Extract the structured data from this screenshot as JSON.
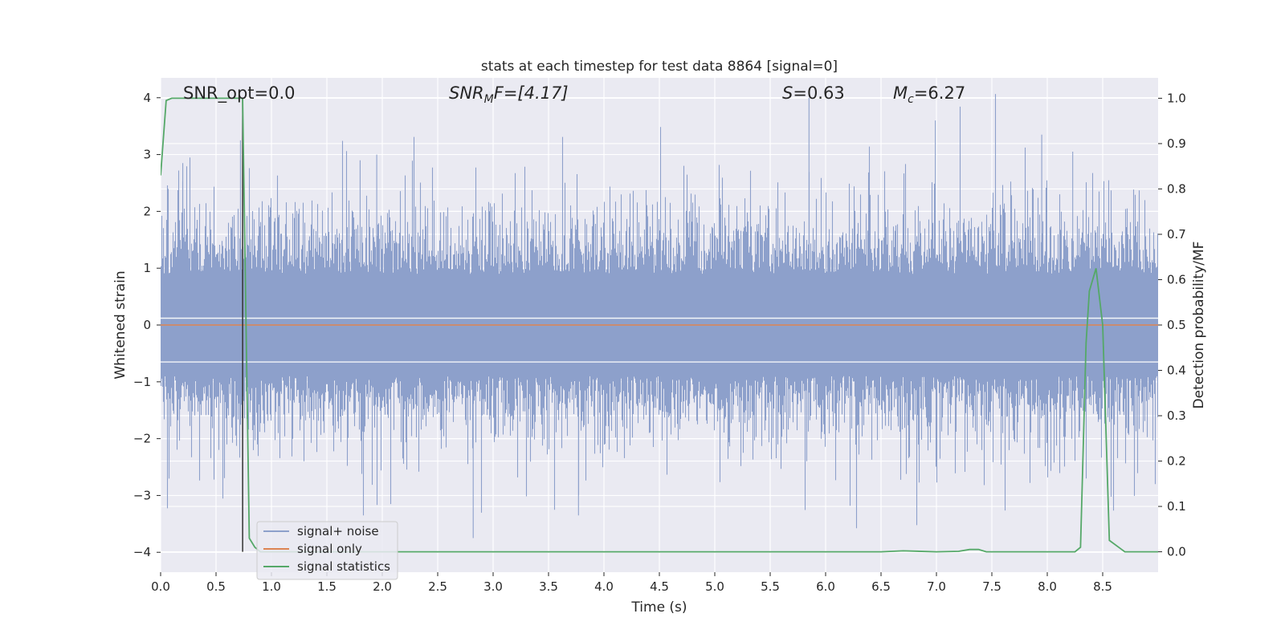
{
  "chart_data": {
    "type": "line",
    "title": "stats at each timestep for test data 8864 [signal=0]",
    "xlabel": "Time (s)",
    "ylabel": "Whitened strain",
    "y2label": "Detection probability/MF",
    "xlim": [
      0.0,
      9.0
    ],
    "ylim": [
      -4.35,
      4.35
    ],
    "y2lim": [
      -0.045,
      1.045
    ],
    "x_ticks": [
      "0.0",
      "0.5",
      "1.0",
      "1.5",
      "2.0",
      "2.5",
      "3.0",
      "3.5",
      "4.0",
      "4.5",
      "5.0",
      "5.5",
      "6.0",
      "6.5",
      "7.0",
      "7.5",
      "8.0",
      "8.5"
    ],
    "y_ticks": [
      "4",
      "3",
      "2",
      "1",
      "0",
      "−1",
      "−2",
      "−3",
      "−4"
    ],
    "y2_ticks": [
      "1.0",
      "0.9",
      "0.8",
      "0.7",
      "0.6",
      "0.5",
      "0.4",
      "0.3",
      "0.2",
      "0.1",
      "0.0"
    ],
    "grid": true,
    "legend_position": "lower-left",
    "annotations": {
      "snr_opt": "SNR_opt=0.0",
      "snr_mf_base": "SNR",
      "snr_mf_sub": "M",
      "snr_mf_rest": "F=[4.17]",
      "s_var": "S",
      "s_val": "=0.63",
      "mc_var": "M",
      "mc_sub": "c",
      "mc_val": "=6.27"
    },
    "series": [
      {
        "name": "signal+ noise",
        "color": "#8da0cb",
        "axis": "left",
        "style": "dense-noise",
        "sample_rate_hz": 2048,
        "envelope_typical": [
          -1.4,
          1.6
        ],
        "peaks": [
          {
            "x": 0.72,
            "y": 3.25
          },
          {
            "x": 0.2,
            "y": 2.85
          },
          {
            "x": 1.8,
            "y": 2.9
          },
          {
            "x": 1.95,
            "y": 3.0
          },
          {
            "x": 2.82,
            "y": -3.75
          },
          {
            "x": 3.77,
            "y": -3.35
          },
          {
            "x": 5.85,
            "y": 4.0
          },
          {
            "x": 6.99,
            "y": 3.6
          },
          {
            "x": 7.95,
            "y": 3.35
          },
          {
            "x": 8.23,
            "y": 3.05
          }
        ]
      },
      {
        "name": "signal only",
        "color": "#dd8452",
        "axis": "left",
        "x": [
          0.0,
          9.0
        ],
        "y": [
          0.0,
          0.0
        ]
      },
      {
        "name": "signal statistics",
        "color": "#55a868",
        "axis": "right",
        "x": [
          0.0,
          0.05,
          0.1,
          0.2,
          0.5,
          0.7,
          0.74,
          0.8,
          0.85,
          0.9,
          1.5,
          2.0,
          2.5,
          3.0,
          3.5,
          4.0,
          4.5,
          5.0,
          5.5,
          6.0,
          6.5,
          6.7,
          7.0,
          7.2,
          7.3,
          7.38,
          7.45,
          7.6,
          8.0,
          8.25,
          8.3,
          8.35,
          8.38,
          8.44,
          8.5,
          8.56,
          8.7,
          9.0
        ],
        "y": [
          0.83,
          0.995,
          1.0,
          1.0,
          1.0,
          1.0,
          1.0,
          0.03,
          0.01,
          0.0,
          0.0,
          0.0,
          0.0,
          0.0,
          0.0,
          0.0,
          0.0,
          0.0,
          0.0,
          0.0,
          0.0,
          0.002,
          0.0,
          0.001,
          0.005,
          0.005,
          0.0,
          0.0,
          0.0,
          0.0,
          0.01,
          0.46,
          0.575,
          0.625,
          0.5,
          0.025,
          0.0,
          0.0
        ]
      }
    ],
    "vertical_marker": {
      "x": 0.74,
      "y_from": 0.0,
      "y_to": 1.0,
      "color": "#333333"
    }
  }
}
